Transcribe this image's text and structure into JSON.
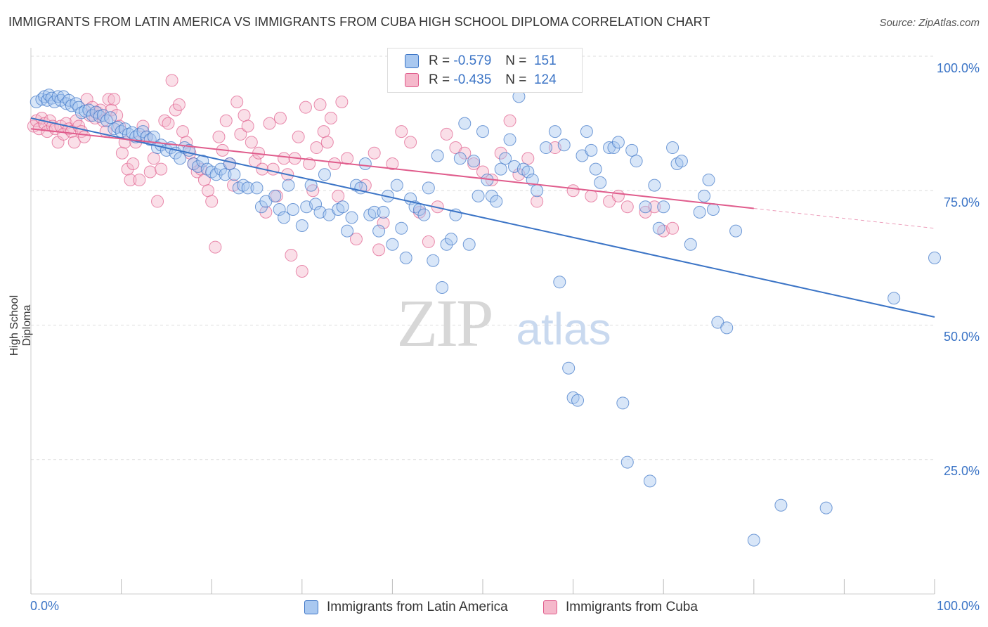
{
  "title": "IMMIGRANTS FROM LATIN AMERICA VS IMMIGRANTS FROM CUBA HIGH SCHOOL DIPLOMA CORRELATION CHART",
  "source": "Source: ZipAtlas.com",
  "watermark": {
    "zip": "ZIP",
    "atlas": "atlas"
  },
  "legend": {
    "blue": {
      "r_label": "R =",
      "r_value": "-0.579",
      "n_label": "N =",
      "n_value": "151"
    },
    "pink": {
      "r_label": "R =",
      "r_value": "-0.435",
      "n_label": "N =",
      "n_value": "124"
    }
  },
  "bottom_legend": {
    "blue": "Immigrants from Latin America",
    "pink": "Immigrants from Cuba"
  },
  "colors": {
    "blue": "#3b74c6",
    "blue_fill": "#a9c8f0",
    "pink": "#e05c8c",
    "pink_fill": "#f5b8cb",
    "grid": "#dcdcdc"
  },
  "chart_data": {
    "type": "scatter",
    "ylabel": "High School Diploma",
    "xlim": [
      0,
      100
    ],
    "ylim": [
      0,
      100
    ],
    "x_tick_labels": [
      "0.0%",
      "100.0%"
    ],
    "y_tick_labels": [
      "100.0%",
      "75.0%",
      "50.0%",
      "25.0%"
    ],
    "y_ticks": [
      100,
      75,
      50,
      25
    ],
    "series": [
      {
        "name": "Immigrants from Latin America",
        "color": "blue",
        "trend": {
          "x0": 0,
          "y0": 88.5,
          "x1": 100,
          "y1": 51.5,
          "solid_until": 100
        },
        "points": [
          [
            0.6,
            91.5
          ],
          [
            1.2,
            92
          ],
          [
            1.5,
            92.5
          ],
          [
            1.8,
            91.8
          ],
          [
            2,
            92.8
          ],
          [
            2.3,
            92.2
          ],
          [
            2.6,
            91.5
          ],
          [
            3,
            92.5
          ],
          [
            3.3,
            91.8
          ],
          [
            3.6,
            92.5
          ],
          [
            3.9,
            91.2
          ],
          [
            4.2,
            91.8
          ],
          [
            4.5,
            90.8
          ],
          [
            5,
            91.2
          ],
          [
            5.3,
            90.5
          ],
          [
            5.6,
            89.5
          ],
          [
            6,
            89.8
          ],
          [
            6.4,
            90
          ],
          [
            6.8,
            89
          ],
          [
            7.2,
            89.6
          ],
          [
            7.6,
            88.8
          ],
          [
            8,
            89
          ],
          [
            8.4,
            88
          ],
          [
            8.8,
            88.6
          ],
          [
            9.2,
            86.5
          ],
          [
            9.6,
            86.8
          ],
          [
            10,
            86
          ],
          [
            10.4,
            86.5
          ],
          [
            10.8,
            85.5
          ],
          [
            11.2,
            85.8
          ],
          [
            11.6,
            85
          ],
          [
            12,
            85.5
          ],
          [
            12.4,
            86
          ],
          [
            12.8,
            85
          ],
          [
            13.2,
            84.5
          ],
          [
            13.6,
            85
          ],
          [
            14,
            83
          ],
          [
            14.4,
            83.5
          ],
          [
            15,
            82.5
          ],
          [
            15.5,
            83
          ],
          [
            16,
            82
          ],
          [
            16.5,
            81
          ],
          [
            17,
            83
          ],
          [
            17.5,
            82.5
          ],
          [
            18,
            80
          ],
          [
            18.5,
            79.5
          ],
          [
            19,
            80.5
          ],
          [
            19.5,
            79
          ],
          [
            20,
            78.5
          ],
          [
            20.5,
            78
          ],
          [
            21,
            79
          ],
          [
            21.5,
            78
          ],
          [
            22,
            80
          ],
          [
            22.5,
            78
          ],
          [
            23,
            75.5
          ],
          [
            23.5,
            76
          ],
          [
            24,
            75.5
          ],
          [
            25,
            75.5
          ],
          [
            25.5,
            72
          ],
          [
            26,
            73
          ],
          [
            27,
            74
          ],
          [
            27.5,
            71.5
          ],
          [
            28,
            70
          ],
          [
            28.5,
            76
          ],
          [
            29,
            71.5
          ],
          [
            30,
            68.5
          ],
          [
            30.5,
            72
          ],
          [
            31,
            76
          ],
          [
            31.5,
            72.5
          ],
          [
            32,
            71
          ],
          [
            32.5,
            78
          ],
          [
            33,
            70.5
          ],
          [
            34,
            71.5
          ],
          [
            34.5,
            72
          ],
          [
            35,
            67.5
          ],
          [
            35.5,
            70
          ],
          [
            36,
            76
          ],
          [
            36.5,
            75.5
          ],
          [
            37,
            80
          ],
          [
            37.5,
            70.5
          ],
          [
            38,
            71
          ],
          [
            38.5,
            67.5
          ],
          [
            39,
            71
          ],
          [
            39.5,
            74
          ],
          [
            40,
            65
          ],
          [
            40.5,
            76
          ],
          [
            41,
            68
          ],
          [
            41.5,
            62.5
          ],
          [
            42,
            73.5
          ],
          [
            42.5,
            72
          ],
          [
            43,
            71.5
          ],
          [
            43.5,
            70.5
          ],
          [
            44,
            75.5
          ],
          [
            44.5,
            62
          ],
          [
            45,
            81.5
          ],
          [
            45.5,
            57
          ],
          [
            46,
            65
          ],
          [
            46.5,
            66
          ],
          [
            47,
            70.5
          ],
          [
            47.5,
            81
          ],
          [
            48,
            87.5
          ],
          [
            48.5,
            65
          ],
          [
            49,
            80.5
          ],
          [
            49.5,
            74
          ],
          [
            50,
            86
          ],
          [
            50.5,
            77
          ],
          [
            51,
            74
          ],
          [
            51.5,
            73
          ],
          [
            52,
            79
          ],
          [
            52.5,
            81
          ],
          [
            53,
            84.5
          ],
          [
            53.5,
            79.5
          ],
          [
            54,
            92.5
          ],
          [
            54.5,
            79
          ],
          [
            55,
            78.5
          ],
          [
            55.5,
            77
          ],
          [
            56,
            75
          ],
          [
            57,
            83
          ],
          [
            58,
            86
          ],
          [
            58.5,
            58
          ],
          [
            59,
            83.5
          ],
          [
            59.5,
            42
          ],
          [
            60,
            36.5
          ],
          [
            60.5,
            36
          ],
          [
            61,
            81.5
          ],
          [
            61.5,
            86
          ],
          [
            62,
            82.5
          ],
          [
            62.5,
            79
          ],
          [
            63,
            76.5
          ],
          [
            64,
            83
          ],
          [
            64.5,
            83
          ],
          [
            65,
            84
          ],
          [
            65.5,
            35.5
          ],
          [
            66,
            24.5
          ],
          [
            66.5,
            82.5
          ],
          [
            67,
            80.5
          ],
          [
            68,
            72
          ],
          [
            68.5,
            21
          ],
          [
            69,
            76
          ],
          [
            69.5,
            68
          ],
          [
            70,
            72
          ],
          [
            71,
            83
          ],
          [
            71.5,
            80
          ],
          [
            72,
            80.5
          ],
          [
            73,
            65
          ],
          [
            74,
            71
          ],
          [
            74.5,
            74
          ],
          [
            75,
            77
          ],
          [
            75.5,
            71.5
          ],
          [
            76,
            50.5
          ],
          [
            77,
            49.5
          ],
          [
            78,
            67.5
          ],
          [
            80,
            10
          ],
          [
            83,
            16.5
          ],
          [
            88,
            16
          ],
          [
            95.5,
            55
          ],
          [
            100,
            62.5
          ]
        ]
      },
      {
        "name": "Immigrants from Cuba",
        "color": "pink",
        "trend": {
          "x0": 0,
          "y0": 86.5,
          "x1": 100,
          "y1": 68,
          "solid_until": 80
        },
        "points": [
          [
            0.3,
            87
          ],
          [
            0.6,
            88
          ],
          [
            0.9,
            86.5
          ],
          [
            1.2,
            88.5
          ],
          [
            1.5,
            87.5
          ],
          [
            1.8,
            86
          ],
          [
            2.1,
            88
          ],
          [
            2.4,
            87
          ],
          [
            2.7,
            86.5
          ],
          [
            3,
            84
          ],
          [
            3.3,
            87
          ],
          [
            3.6,
            85.5
          ],
          [
            3.9,
            87.5
          ],
          [
            4.2,
            86.5
          ],
          [
            4.5,
            86
          ],
          [
            4.8,
            84
          ],
          [
            5,
            88
          ],
          [
            5.3,
            87
          ],
          [
            5.6,
            86
          ],
          [
            5.9,
            85
          ],
          [
            6.2,
            92
          ],
          [
            6.5,
            89
          ],
          [
            6.8,
            90.5
          ],
          [
            7.1,
            88.5
          ],
          [
            7.4,
            89.5
          ],
          [
            7.7,
            90
          ],
          [
            8,
            88
          ],
          [
            8.3,
            86
          ],
          [
            8.6,
            92
          ],
          [
            8.9,
            90
          ],
          [
            9.2,
            92
          ],
          [
            9.5,
            89
          ],
          [
            9.8,
            87
          ],
          [
            10.1,
            82
          ],
          [
            10.4,
            84
          ],
          [
            10.7,
            79
          ],
          [
            11,
            77
          ],
          [
            11.3,
            80
          ],
          [
            11.6,
            84
          ],
          [
            12,
            77
          ],
          [
            12.4,
            87
          ],
          [
            12.8,
            85
          ],
          [
            13.2,
            78.5
          ],
          [
            13.6,
            81
          ],
          [
            14,
            73
          ],
          [
            14.4,
            79
          ],
          [
            14.8,
            88
          ],
          [
            15.2,
            87.5
          ],
          [
            15.6,
            95.5
          ],
          [
            16,
            90
          ],
          [
            16.4,
            91
          ],
          [
            16.8,
            86
          ],
          [
            17.2,
            84
          ],
          [
            17.6,
            82
          ],
          [
            18,
            80
          ],
          [
            18.4,
            78.5
          ],
          [
            18.8,
            79
          ],
          [
            19.2,
            77
          ],
          [
            19.6,
            75
          ],
          [
            20,
            73
          ],
          [
            20.4,
            64.5
          ],
          [
            20.8,
            85
          ],
          [
            21.2,
            82.5
          ],
          [
            21.6,
            88
          ],
          [
            22,
            80
          ],
          [
            22.4,
            76
          ],
          [
            22.8,
            91.5
          ],
          [
            23.2,
            85.5
          ],
          [
            23.6,
            89
          ],
          [
            24,
            87
          ],
          [
            24.4,
            84
          ],
          [
            24.8,
            80.5
          ],
          [
            25.2,
            82
          ],
          [
            25.6,
            79
          ],
          [
            26,
            71
          ],
          [
            26.4,
            87.5
          ],
          [
            26.8,
            79
          ],
          [
            27.2,
            74
          ],
          [
            27.6,
            88.5
          ],
          [
            28,
            81
          ],
          [
            28.4,
            78
          ],
          [
            28.8,
            63
          ],
          [
            29.2,
            81
          ],
          [
            29.6,
            85
          ],
          [
            30,
            60
          ],
          [
            30.4,
            90.5
          ],
          [
            30.8,
            80
          ],
          [
            31.2,
            75
          ],
          [
            31.6,
            83
          ],
          [
            32,
            91
          ],
          [
            32.4,
            86
          ],
          [
            32.8,
            84
          ],
          [
            33.2,
            88.5
          ],
          [
            33.6,
            80
          ],
          [
            34,
            74
          ],
          [
            34.4,
            91.5
          ],
          [
            35,
            81
          ],
          [
            36,
            66
          ],
          [
            37,
            76
          ],
          [
            38,
            82
          ],
          [
            38.5,
            64
          ],
          [
            39,
            69
          ],
          [
            40,
            80
          ],
          [
            41,
            86
          ],
          [
            42,
            84
          ],
          [
            43,
            71
          ],
          [
            44,
            65.5
          ],
          [
            45,
            72
          ],
          [
            46,
            85.5
          ],
          [
            47,
            83
          ],
          [
            48,
            82
          ],
          [
            49,
            80
          ],
          [
            50,
            78.5
          ],
          [
            51,
            77
          ],
          [
            52,
            82
          ],
          [
            53,
            88
          ],
          [
            54,
            78
          ],
          [
            55,
            81
          ],
          [
            56,
            73
          ],
          [
            58,
            83
          ],
          [
            60,
            75
          ],
          [
            62,
            74
          ],
          [
            64,
            73
          ],
          [
            65,
            74
          ],
          [
            66,
            72
          ],
          [
            68,
            71
          ],
          [
            69,
            72
          ],
          [
            70,
            67.5
          ],
          [
            71,
            68
          ]
        ]
      }
    ]
  }
}
